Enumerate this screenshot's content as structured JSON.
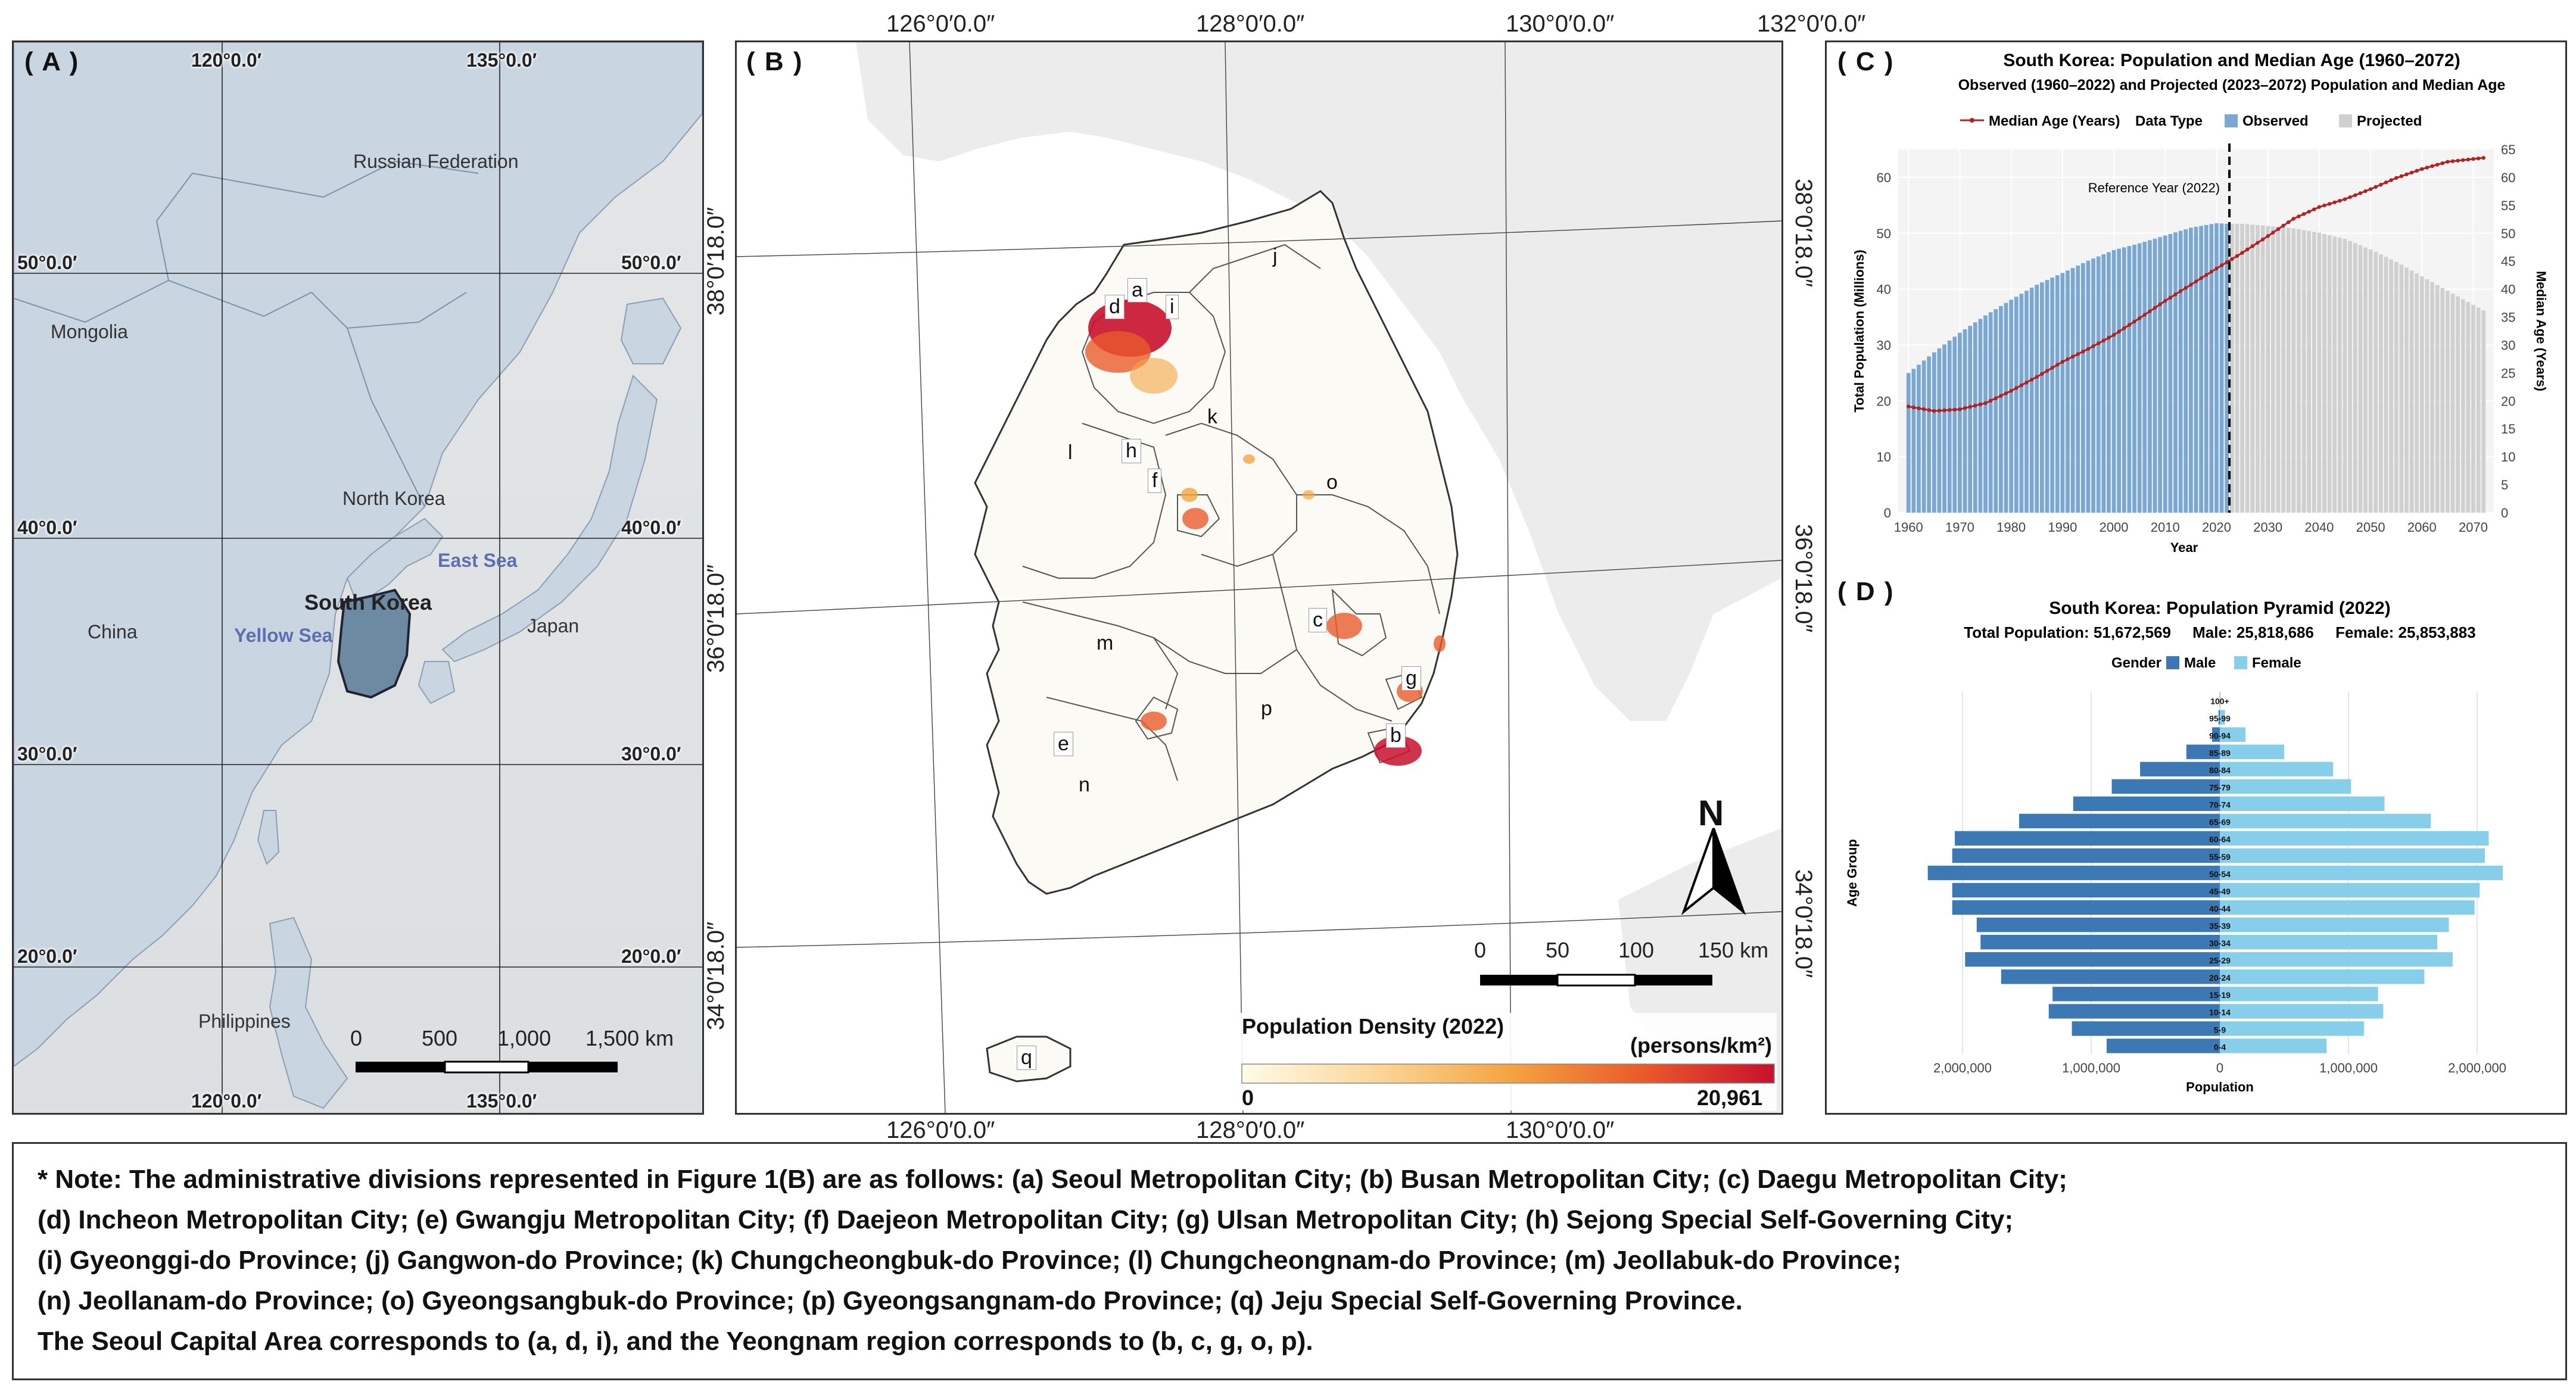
{
  "panel_a": {
    "label": "( A )",
    "lon_labels_top": [
      "120°0.0′",
      "135°0.0′"
    ],
    "lon_labels_bottom": [
      "120°0.0′",
      "135°0.0′"
    ],
    "lat_labels_left": [
      "50°0.0′",
      "40°0.0′",
      "30°0.0′",
      "20°0.0′"
    ],
    "lat_labels_right": [
      "50°0.0′",
      "40°0.0′",
      "30°0.0′",
      "20°0.0′"
    ],
    "places": {
      "russia": "Russian Federation",
      "mongolia": "Mongolia",
      "north_korea": "North Korea",
      "china": "China",
      "south_korea": "South Korea",
      "east_sea": "East Sea",
      "yellow_sea": "Yellow Sea",
      "japan": "Japan",
      "philippines": "Philippines"
    },
    "scale": {
      "ticks": [
        "0",
        "500",
        "1,000",
        "1,500 km"
      ]
    }
  },
  "panel_b": {
    "label": "( B )",
    "lon_labels_top": [
      "126°0′0.0″",
      "128°0′0.0″",
      "130°0′0.0″",
      "132°0′0.0″"
    ],
    "lon_labels_bottom": [
      "126°0′0.0″",
      "128°0′0.0″",
      "130°0′0.0″"
    ],
    "lat_labels_left": [
      "38°0′18.0″",
      "36°0′18.0″",
      "34°0′18.0″"
    ],
    "lat_labels_right": [
      "38°0′18.0″",
      "36°0′18.0″",
      "34°0′18.0″"
    ],
    "regions": [
      "a",
      "b",
      "c",
      "d",
      "e",
      "f",
      "g",
      "h",
      "i",
      "j",
      "k",
      "l",
      "m",
      "n",
      "o",
      "p",
      "q"
    ],
    "north_arrow": "N",
    "scale": {
      "ticks": [
        "0",
        "50",
        "100",
        "150 km"
      ]
    },
    "legend": {
      "title": "Population Density (2022)",
      "unit": "(persons/km²)",
      "min": "0",
      "max": "20,961",
      "colors": [
        "#fffbe8",
        "#fcd79a",
        "#f5a542",
        "#ea5b2a",
        "#c8102e"
      ]
    }
  },
  "panel_c": {
    "label": "( C )",
    "chart_data": {
      "type": "bar",
      "title": "South Korea: Population and Median Age (1960–2072)",
      "subtitle": "Observed (1960–2022) and Projected (2023–2072) Population and Median Age",
      "legend": {
        "median_age": "Median Age (Years)",
        "data_type": "Data Type",
        "observed": "Observed",
        "projected": "Projected",
        "placement": "top"
      },
      "reference_label": "Reference Year (2022)",
      "reference_year": 2022,
      "xlabel": "Year",
      "ylabel": "Total Population (Millions)",
      "y2label": "Median Age (Years)",
      "xlim": [
        1960,
        2072
      ],
      "ylim": [
        0,
        65
      ],
      "xticks": [
        "1960",
        "1970",
        "1980",
        "1990",
        "2000",
        "2010",
        "2020",
        "2030",
        "2040",
        "2050",
        "2060",
        "2070"
      ],
      "yticks": [
        "0",
        "10",
        "20",
        "30",
        "40",
        "50",
        "60"
      ],
      "y2ticks": [
        "0",
        "5",
        "10",
        "15",
        "20",
        "25",
        "30",
        "35",
        "40",
        "45",
        "50",
        "55",
        "60",
        "65"
      ],
      "population_knots": {
        "years": [
          1960,
          1965,
          1970,
          1975,
          1980,
          1985,
          1990,
          1995,
          2000,
          2005,
          2010,
          2015,
          2020,
          2022,
          2025,
          2030,
          2035,
          2040,
          2045,
          2050,
          2055,
          2060,
          2065,
          2070,
          2072
        ],
        "values": [
          25.0,
          28.7,
          32.2,
          35.3,
          38.1,
          40.8,
          42.9,
          45.1,
          47.0,
          48.2,
          49.6,
          51.0,
          51.8,
          51.7,
          51.7,
          51.3,
          50.9,
          50.1,
          49.0,
          47.1,
          44.9,
          42.3,
          39.7,
          37.2,
          36.2
        ]
      },
      "median_age_knots": {
        "years": [
          1960,
          1965,
          1970,
          1975,
          1980,
          1985,
          1990,
          1995,
          2000,
          2005,
          2010,
          2015,
          2020,
          2025,
          2030,
          2035,
          2040,
          2045,
          2050,
          2055,
          2060,
          2065,
          2070,
          2072
        ],
        "values": [
          19.0,
          18.2,
          18.5,
          19.6,
          21.8,
          24.3,
          27.0,
          29.3,
          31.8,
          34.8,
          37.9,
          40.8,
          43.7,
          46.5,
          49.5,
          52.6,
          54.7,
          56.1,
          57.9,
          59.9,
          61.5,
          62.8,
          63.3,
          63.5
        ]
      },
      "colors": {
        "observed": "#7ba7d3",
        "projected": "#d0d0d0",
        "median_age": "#b22222"
      }
    }
  },
  "panel_d": {
    "label": "( D )",
    "chart_data": {
      "type": "bar",
      "title": "South Korea: Population Pyramid (2022)",
      "subtitle": "Total Population: 51,672,569     Male: 25,818,686     Female: 25,853,883",
      "legend": {
        "title": "Gender",
        "male": "Male",
        "female": "Female",
        "placement": "top"
      },
      "xlabel": "Population",
      "ylabel": "Age Group",
      "xlim": [
        -2500000,
        2500000
      ],
      "xticks": [
        "2,000,000",
        "1,000,000",
        "0",
        "1,000,000",
        "2,000,000"
      ],
      "categories": [
        "0-4",
        "5-9",
        "10-14",
        "15-19",
        "20-24",
        "25-29",
        "30-34",
        "35-39",
        "40-44",
        "45-49",
        "50-54",
        "55-59",
        "60-64",
        "65-69",
        "70-74",
        "75-79",
        "80-84",
        "85-89",
        "90-94",
        "95-99",
        "100+"
      ],
      "series": [
        {
          "name": "Male",
          "values": [
            880000,
            1150000,
            1330000,
            1300000,
            1700000,
            1980000,
            1860000,
            1890000,
            2080000,
            2080000,
            2270000,
            2080000,
            2060000,
            1560000,
            1140000,
            840000,
            620000,
            260000,
            60000,
            10000,
            1000
          ]
        },
        {
          "name": "Female",
          "values": [
            830000,
            1120000,
            1270000,
            1230000,
            1590000,
            1810000,
            1690000,
            1780000,
            1980000,
            2020000,
            2200000,
            2060000,
            2090000,
            1640000,
            1280000,
            1020000,
            880000,
            500000,
            200000,
            40000,
            5000
          ]
        }
      ],
      "colors": {
        "male": "#3c78b4",
        "female": "#87ceeb"
      }
    }
  },
  "note": {
    "lines": [
      "* Note: The administrative divisions represented in Figure 1(B) are as follows: (a) Seoul Metropolitan City; (b) Busan Metropolitan City; (c) Daegu Metropolitan City;",
      "(d) Incheon Metropolitan City; (e) Gwangju Metropolitan City; (f) Daejeon Metropolitan City; (g) Ulsan Metropolitan City; (h) Sejong Special Self-Governing City;",
      "(i) Gyeonggi-do Province; (j) Gangwon-do Province; (k) Chungcheongbuk-do Province; (l) Chungcheongnam-do Province; (m) Jeollabuk-do Province;",
      "(n) Jeollanam-do Province; (o) Gyeongsangbuk-do Province; (p) Gyeongsangnam-do Province; (q) Jeju Special Self-Governing Province.",
      "The Seoul Capital Area corresponds to (a, d, i), and the Yeongnam region corresponds to (b, c, g, o, p)."
    ]
  }
}
